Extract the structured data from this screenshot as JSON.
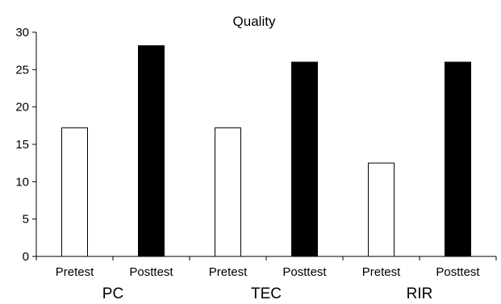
{
  "chart_data": {
    "type": "bar",
    "title": "Quality",
    "xlabel": "",
    "ylabel": "",
    "ylim": [
      0,
      30
    ],
    "yticks": [
      0,
      5,
      10,
      15,
      20,
      25,
      30
    ],
    "grid": false,
    "groups": [
      "PC",
      "TEC",
      "RIR"
    ],
    "categories": [
      "Pretest",
      "Posttest",
      "Pretest",
      "Posttest",
      "Pretest",
      "Posttest"
    ],
    "values": [
      17.2,
      28.2,
      17.2,
      26.0,
      12.5,
      26.0
    ],
    "bar_fills": [
      "#ffffff",
      "#000000",
      "#ffffff",
      "#000000",
      "#ffffff",
      "#000000"
    ]
  }
}
